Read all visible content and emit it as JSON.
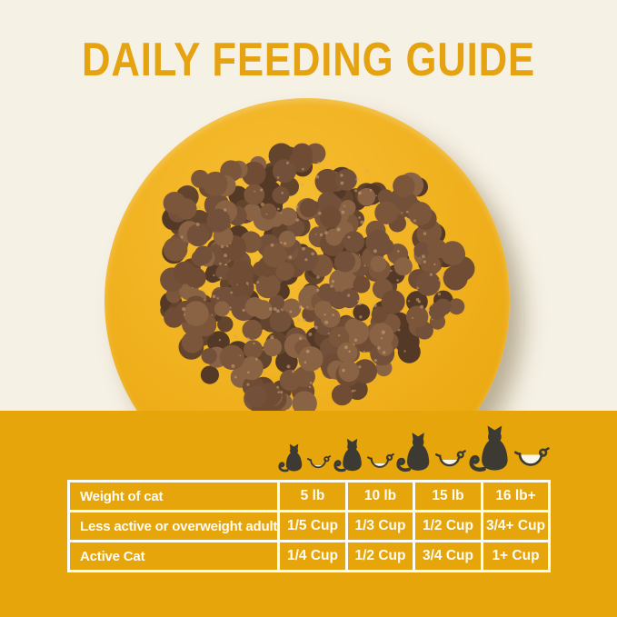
{
  "title": "DAILY FEEDING GUIDE",
  "colors": {
    "background_cream": "#F6F1E5",
    "band_gold": "#E6A60B",
    "plate_gold": "#F0B01D",
    "title_gold": "#E5A312",
    "table_border": "#FEFCF2",
    "table_text": "#FEFCF4",
    "icon_dark": "#3C3A32",
    "cup_fill_white": "#FAF6EA",
    "kibble_palette": [
      "#543926",
      "#63442d",
      "#6F4C33",
      "#7B563A",
      "#8A6345",
      "#72503a"
    ]
  },
  "icons": [
    {
      "name": "cat-with-measuring-cup-smallest",
      "cup_fill_level": 0.26
    },
    {
      "name": "cat-with-measuring-cup-small",
      "cup_fill_level": 0.42
    },
    {
      "name": "cat-with-measuring-cup-medium",
      "cup_fill_level": 0.58
    },
    {
      "name": "cat-with-measuring-cup-large",
      "cup_fill_level": 0.92
    }
  ],
  "table": {
    "rows": [
      {
        "cells": [
          "Weight of cat",
          "5 lb",
          "10 lb",
          "15 lb",
          "16 lb+"
        ]
      },
      {
        "cells": [
          "Less active or overweight adult",
          "1/5 Cup",
          "1/3 Cup",
          "1/2 Cup",
          "3/4+ Cup"
        ]
      },
      {
        "cells": [
          "Active Cat",
          "1/4 Cup",
          "1/2 Cup",
          "3/4 Cup",
          "1+ Cup"
        ]
      }
    ]
  },
  "chart_data": {
    "type": "table",
    "title": "DAILY FEEDING GUIDE",
    "columns": [
      "Weight of cat",
      "5 lb",
      "10 lb",
      "15 lb",
      "16 lb+"
    ],
    "rows": [
      {
        "label": "Less active or overweight adult",
        "values": [
          "1/5 Cup",
          "1/3 Cup",
          "1/2 Cup",
          "3/4+ Cup"
        ]
      },
      {
        "label": "Active Cat",
        "values": [
          "1/4 Cup",
          "1/2 Cup",
          "3/4 Cup",
          "1+ Cup"
        ]
      }
    ]
  }
}
